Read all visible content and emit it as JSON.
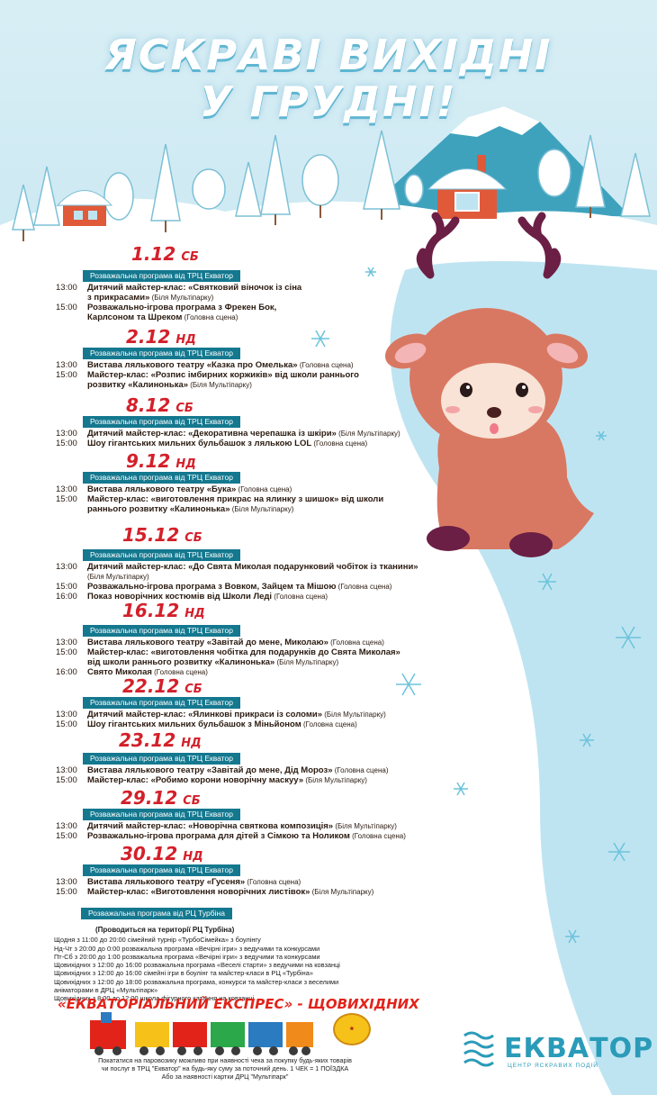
{
  "header": {
    "line1": "ЯСКРАВІ ВИХІДНІ",
    "line2": "У ГРУДНІ!"
  },
  "days": [
    {
      "date": "1.12",
      "dow": "СБ",
      "program": "Розважальна програма від ТРЦ Екватор",
      "events": [
        {
          "time": "13:00",
          "desc": "Дитячий майстер-клас: «Святковий віночок із сіна",
          "loc": ""
        },
        {
          "time": "",
          "desc": "з прикрасами»",
          "loc": "(Біля Мультіпарку)"
        },
        {
          "time": "15:00",
          "desc": "Розважально-ігрова програма з Фрекен Бок,",
          "loc": ""
        },
        {
          "time": "",
          "desc": "Карлсоном та Шреком",
          "loc": "(Головна сцена)"
        }
      ]
    },
    {
      "date": "2.12",
      "dow": "НД",
      "program": "Розважальна програма від ТРЦ Екватор",
      "events": [
        {
          "time": "13:00",
          "desc": "Вистава лялькового театру «Казка про Омелька»",
          "loc": "(Головна сцена)"
        },
        {
          "time": "15:00",
          "desc": "Майстер-клас: «Розпис імбирних коржиків» від школи раннього",
          "loc": ""
        },
        {
          "time": "",
          "desc": "розвитку «Калинонька»",
          "loc": "(Біля Мультіпарку)"
        }
      ]
    },
    {
      "date": "8.12",
      "dow": "СБ",
      "program": "Розважальна програма від ТРЦ Екватор",
      "events": [
        {
          "time": "13:00",
          "desc": "Дитячий майстер-клас: «Декоративна черепашка із шкіри»",
          "loc": "(Біля Мультіпарку)"
        },
        {
          "time": "15:00",
          "desc": "Шоу гігантських мильних бульбашок з лялькою LOL",
          "loc": "(Головна сцена)"
        }
      ]
    },
    {
      "date": "9.12",
      "dow": "НД",
      "program": "Розважальна програма від ТРЦ Екватор",
      "events": [
        {
          "time": "13:00",
          "desc": "Вистава лялькового театру «Бука»",
          "loc": "(Головна сцена)"
        },
        {
          "time": "15:00",
          "desc": "Майстер-клас: «виготовлення прикрас на ялинку з шишок» від школи",
          "loc": ""
        },
        {
          "time": "",
          "desc": "раннього розвитку «Калинонька»",
          "loc": "(Біля Мультіпарку)"
        }
      ]
    },
    {
      "date": "15.12",
      "dow": "СБ",
      "program": "Розважальна програма від ТРЦ Екватор",
      "events": [
        {
          "time": "13:00",
          "desc": "Дитячий майстер-клас: «До Свята Миколая подарунковий чобіток із тканини»",
          "loc": ""
        },
        {
          "time": "",
          "desc": "",
          "loc": "(Біля Мультіпарку)"
        },
        {
          "time": "15:00",
          "desc": "Розважально-ігрова програма з Вовком, Зайцем та Мішою",
          "loc": "(Головна сцена)"
        },
        {
          "time": "16:00",
          "desc": "Показ новорічних костюмів від Школи Леді",
          "loc": "(Головна сцена)"
        }
      ]
    },
    {
      "date": "16.12",
      "dow": "НД",
      "program": "Розважальна програма від ТРЦ Екватор",
      "events": [
        {
          "time": "13:00",
          "desc": "Вистава лялькового театру «Завітай до мене, Миколаю»",
          "loc": "(Головна сцена)"
        },
        {
          "time": "15:00",
          "desc": "Майстер-клас: «виготовлення чобітка для подарунків до Свята Миколая»",
          "loc": ""
        },
        {
          "time": "",
          "desc": "від школи раннього розвитку «Калинонька»",
          "loc": "(Біля Мультіпарку)"
        },
        {
          "time": "16:00",
          "desc": "Свято Миколая",
          "loc": "(Головна сцена)"
        }
      ]
    },
    {
      "date": "22.12",
      "dow": "СБ",
      "program": "Розважальна програма від ТРЦ Екватор",
      "events": [
        {
          "time": "13:00",
          "desc": "Дитячий майстер-клас: «Ялинкові прикраси із соломи»",
          "loc": "(Біля Мультіпарку)"
        },
        {
          "time": "15:00",
          "desc": "Шоу гігантських мильних бульбашок з Міньйоном",
          "loc": "(Головна сцена)"
        }
      ]
    },
    {
      "date": "23.12",
      "dow": "НД",
      "program": "Розважальна програма від ТРЦ Екватор",
      "events": [
        {
          "time": "13:00",
          "desc": "Вистава лялькового театру «Завітай до мене, Дід Мороз»",
          "loc": "(Головна сцена)"
        },
        {
          "time": "15:00",
          "desc": "Майстер-клас: «Робимо корони новорічну маскуу»",
          "loc": "(Біля Мультіпарку)"
        }
      ]
    },
    {
      "date": "29.12",
      "dow": "СБ",
      "program": "Розважальна програма від ТРЦ Екватор",
      "events": [
        {
          "time": "13:00",
          "desc": "Дитячий майстер-клас: «Новорічна святкова композиція»",
          "loc": "(Біля Мультіпарку)"
        },
        {
          "time": "15:00",
          "desc": "Розважально-ігрова програма для дітей з Сімкою та Ноликом",
          "loc": "(Головна сцена)"
        }
      ]
    },
    {
      "date": "30.12",
      "dow": "НД",
      "program": "Розважальна програма від ТРЦ Екватор",
      "events": [
        {
          "time": "13:00",
          "desc": "Вистава лялькового театру «Гусеня»",
          "loc": "(Головна сцена)"
        },
        {
          "time": "15:00",
          "desc": "Майстер-клас: «Виготовлення новорічних листівок»",
          "loc": "(Біля Мультіпарку)"
        }
      ]
    }
  ],
  "turbina": {
    "program": "Розважальна програма від РЦ Турбіна",
    "subtitle": "(Проводиться на території РЦ Турбіна)",
    "lines": [
      "Щодня з 11:00 до 20:00 сімейний турнір «ТурбоСімейка» з боулінгу",
      "Нд-Чт з 20:00 до 0:00 розважальна програма «Вечірні ігри» з ведучими та конкурсами",
      "Пт-Сб з 20:00 до 1:00 розважальна програма «Вечірні ігри» з ведучими та конкурсами",
      "Щовихідних з 12:00 до 16:00 розважальна програма «Веселі старти» з ведучими на ковзанці",
      "Щовихідних з 12:00 до 16:00 сімейні ігри в боулінг та майстер-класи в РЦ «Турбіна»",
      "Щовихідних з 12:00 до 18:00 розважальна програма, конкурси та майстер-класи з веселими",
      "аніматорами в ДРЦ «Мультіпарк»",
      "Щовихідних з 8:00 до 12:00 школа фігурного катання на ковзанці"
    ]
  },
  "express": {
    "title": "«ЕКВАТОРІАЛЬНИЙ ЕКСПРЕС» - ЩОВИХІДНИХ"
  },
  "footer": {
    "lines": [
      "Покататися на паровозику можливо при наявності чека за покупку будь-яких товарів",
      "чи послуг в ТРЦ \"Екватор\" на будь-яку суму за поточний день. 1 ЧЕК = 1 ПОЇЗДКА",
      "Або за наявності картки ДРЦ \"Мультіпарк\""
    ]
  },
  "logo": {
    "name": "ЕКВАТОР",
    "tagline": "ЦЕНТР ЯСКРАВИХ ПОДІЙ"
  },
  "colors": {
    "date": "#d3202a",
    "band": "#14788f",
    "sky": "#a9d9ea",
    "snow": "#ffffff"
  }
}
